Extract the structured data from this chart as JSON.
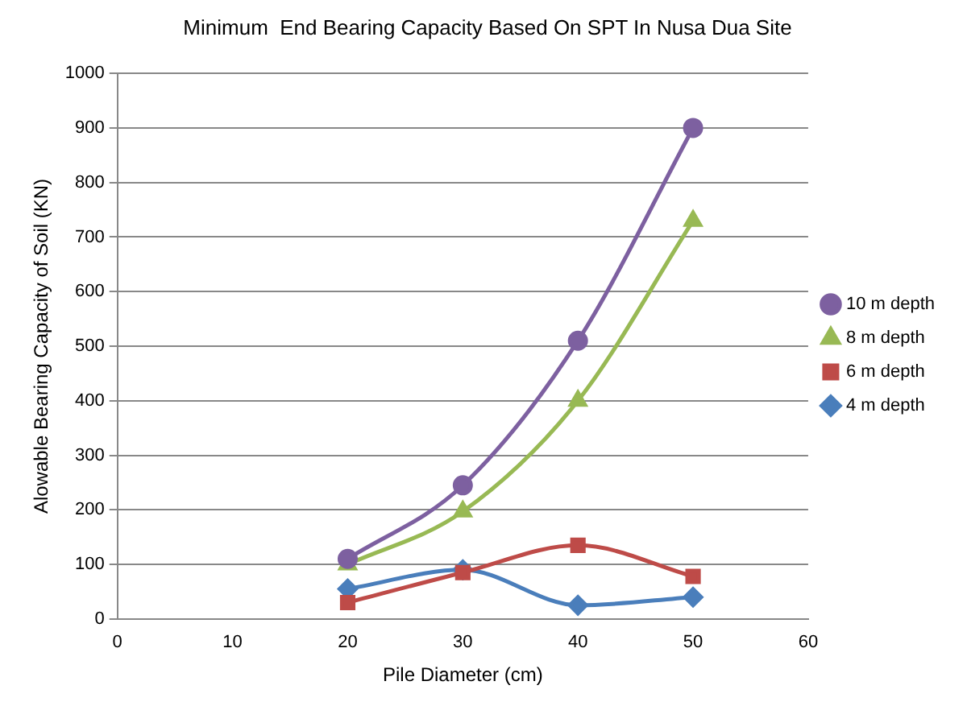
{
  "chart_data": {
    "type": "line",
    "title": "Minimum  End Bearing Capacity Based On SPT In Nusa Dua Site",
    "xlabel": "Pile Diameter (cm)",
    "ylabel": "Alowable Bearing Capacity of Soil (KN)",
    "x": [
      20,
      30,
      40,
      50
    ],
    "series": [
      {
        "name": "4 m depth",
        "color": "#4a7ebb",
        "marker": "diamond",
        "values": [
          55,
          90,
          25,
          40
        ]
      },
      {
        "name": "6 m depth",
        "color": "#be4b48",
        "marker": "square",
        "values": [
          30,
          85,
          135,
          78
        ]
      },
      {
        "name": "8 m depth",
        "color": "#98b954",
        "marker": "triangle",
        "values": [
          100,
          197,
          400,
          730
        ]
      },
      {
        "name": "10 m depth",
        "color": "#7d60a0",
        "marker": "circle",
        "values": [
          110,
          245,
          510,
          900
        ]
      }
    ],
    "xlim": [
      0,
      60
    ],
    "xticks": [
      0,
      10,
      20,
      30,
      40,
      50,
      60
    ],
    "ylim": [
      0,
      1000
    ],
    "yticks": [
      0,
      100,
      200,
      300,
      400,
      500,
      600,
      700,
      800,
      900,
      1000
    ],
    "grid": "y",
    "legend": "right"
  }
}
